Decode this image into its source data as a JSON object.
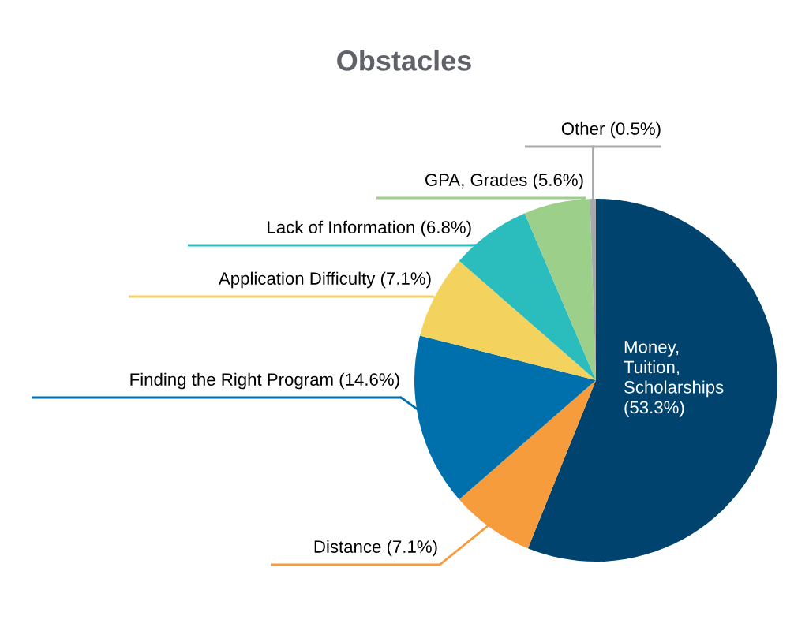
{
  "chart_data": {
    "type": "pie",
    "title": "Obstacles",
    "categories": [
      "Money, Tuition, Scholarships",
      "Distance",
      "Finding the Right Program",
      "Application Difficulty",
      "Lack of Information",
      "GPA, Grades",
      "Other"
    ],
    "values": [
      53.3,
      7.1,
      14.6,
      7.1,
      6.8,
      5.6,
      0.5
    ],
    "value_labels": [
      "(53.3%)",
      "(7.1%)",
      "(14.6%)",
      "(7.1%)",
      "(6.8%)",
      "(5.6%)",
      "(0.5%)"
    ],
    "colors": [
      "#00436e",
      "#f79c3c",
      "#0070ad",
      "#f3d35e",
      "#2bbdbd",
      "#9ccf8a",
      "#a7a9ac"
    ],
    "legend": false
  }
}
